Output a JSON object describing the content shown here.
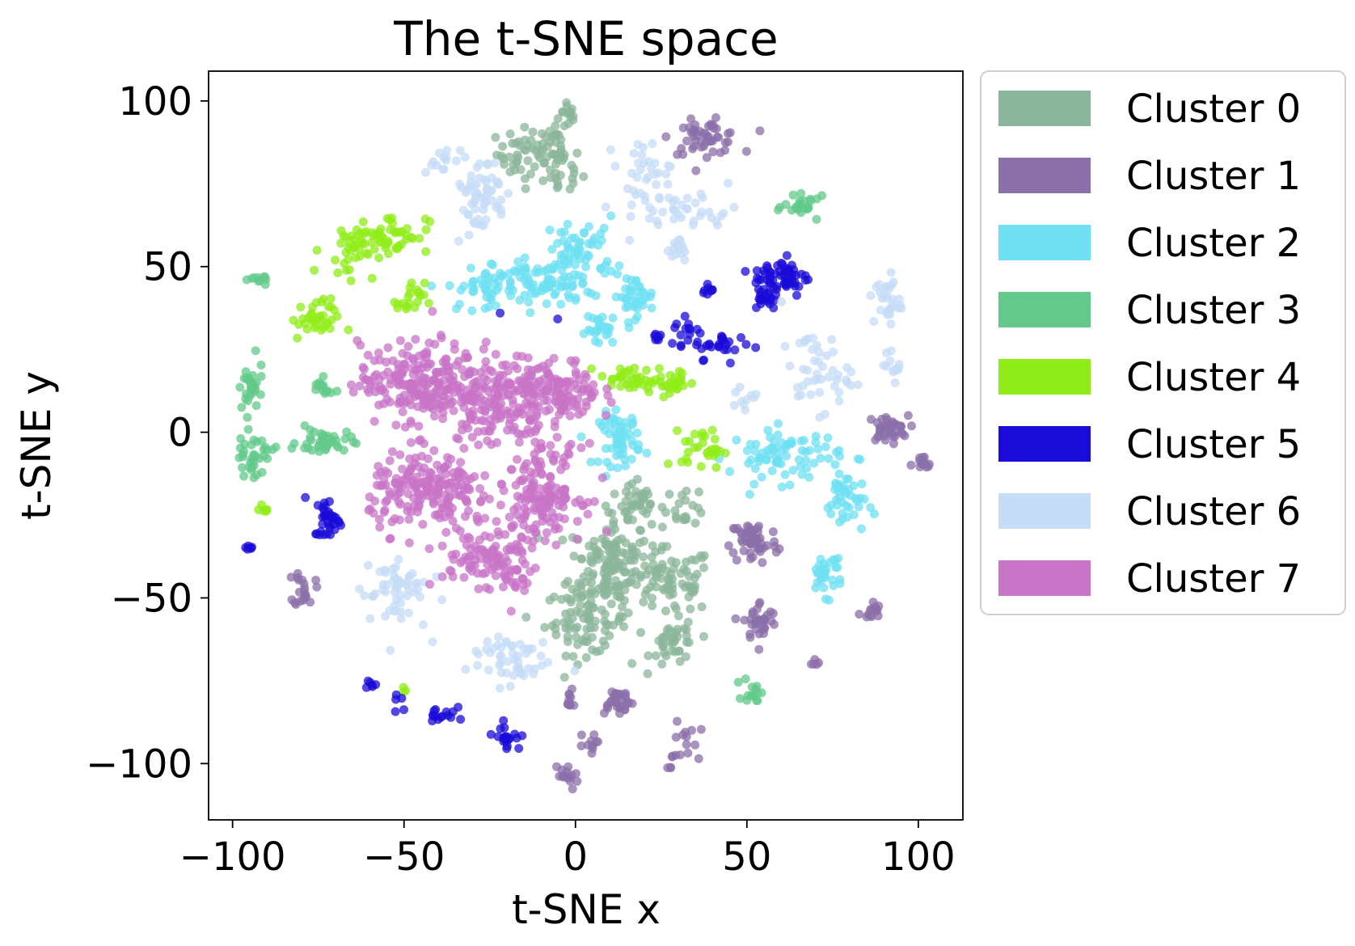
{
  "chart_data": {
    "type": "scatter",
    "title": "The t-SNE space",
    "xlabel": "t-SNE x",
    "ylabel": "t-SNE y",
    "xlim": [
      -107,
      113
    ],
    "ylim": [
      -117,
      109
    ],
    "xticks": [
      -100,
      -50,
      0,
      50,
      100
    ],
    "yticks": [
      -100,
      -50,
      0,
      50,
      100
    ],
    "xtick_labels": [
      "−100",
      "−50",
      "0",
      "50",
      "100"
    ],
    "ytick_labels": [
      "−100",
      "−50",
      "0",
      "50",
      "100"
    ],
    "grid": false,
    "legend_position": "outside-right-top",
    "series": [
      {
        "name": "Cluster 0",
        "color": "#8BB59A",
        "groups": [
          {
            "x": -2,
            "y": 96,
            "sx": 1.5,
            "sy": 2.5,
            "n": 14
          },
          {
            "x": -13,
            "y": 84,
            "sx": 5,
            "sy": 4,
            "n": 55
          },
          {
            "x": -4,
            "y": 80,
            "sx": 3,
            "sy": 5,
            "n": 30
          },
          {
            "x": 10,
            "y": -40,
            "sx": 6,
            "sy": 7,
            "n": 140
          },
          {
            "x": 3,
            "y": -57,
            "sx": 6,
            "sy": 5,
            "n": 80
          },
          {
            "x": 17,
            "y": -22,
            "sx": 4,
            "sy": 4,
            "n": 40
          },
          {
            "x": 28,
            "y": -45,
            "sx": 6,
            "sy": 5,
            "n": 70
          },
          {
            "x": 29,
            "y": -64,
            "sx": 3.5,
            "sy": 3.5,
            "n": 40
          },
          {
            "x": 32,
            "y": -22,
            "sx": 3,
            "sy": 3,
            "n": 20
          }
        ]
      },
      {
        "name": "Cluster 1",
        "color": "#8B6FA9",
        "groups": [
          {
            "x": 38,
            "y": 89,
            "sx": 5,
            "sy": 2.5,
            "n": 50
          },
          {
            "x": 91,
            "y": 1,
            "sx": 3,
            "sy": 2,
            "n": 40
          },
          {
            "x": 101,
            "y": -10,
            "sx": 1.5,
            "sy": 1.5,
            "n": 15
          },
          {
            "x": 52,
            "y": -33,
            "sx": 3.5,
            "sy": 3.5,
            "n": 55
          },
          {
            "x": 54,
            "y": -57,
            "sx": 2.5,
            "sy": 3,
            "n": 35
          },
          {
            "x": 86,
            "y": -54,
            "sx": 1.5,
            "sy": 1.5,
            "n": 15
          },
          {
            "x": -79,
            "y": -47,
            "sx": 1.5,
            "sy": 3,
            "n": 20
          },
          {
            "x": 12,
            "y": -81,
            "sx": 2.5,
            "sy": 2,
            "n": 30
          },
          {
            "x": -2,
            "y": -81,
            "sx": 1.5,
            "sy": 1.5,
            "n": 10
          },
          {
            "x": 3,
            "y": -94,
            "sx": 1.5,
            "sy": 1.5,
            "n": 10
          },
          {
            "x": -3,
            "y": -104,
            "sx": 2,
            "sy": 2,
            "n": 15
          },
          {
            "x": 33,
            "y": -93,
            "sx": 2,
            "sy": 3,
            "n": 12
          },
          {
            "x": 27,
            "y": -99,
            "sx": 1,
            "sy": 1.5,
            "n": 6
          },
          {
            "x": 70,
            "y": -70,
            "sx": 1,
            "sy": 0.8,
            "n": 5
          }
        ]
      },
      {
        "name": "Cluster 2",
        "color": "#6EE0F2",
        "groups": [
          {
            "x": -10,
            "y": 45,
            "sx": 7,
            "sy": 4,
            "n": 85
          },
          {
            "x": 2,
            "y": 55,
            "sx": 5,
            "sy": 5,
            "n": 55
          },
          {
            "x": -27,
            "y": 43,
            "sx": 5,
            "sy": 3,
            "n": 40
          },
          {
            "x": 17,
            "y": 41,
            "sx": 3,
            "sy": 3,
            "n": 40
          },
          {
            "x": 8,
            "y": 31,
            "sx": 2.5,
            "sy": 2.5,
            "n": 25
          },
          {
            "x": 13,
            "y": -2,
            "sx": 3,
            "sy": 4,
            "n": 60
          },
          {
            "x": 61,
            "y": -7,
            "sx": 8,
            "sy": 4,
            "n": 75
          },
          {
            "x": 79,
            "y": -21,
            "sx": 3,
            "sy": 5,
            "n": 40
          },
          {
            "x": 73,
            "y": -42,
            "sx": 2.5,
            "sy": 3.5,
            "n": 30
          }
        ]
      },
      {
        "name": "Cluster 3",
        "color": "#62C98A",
        "groups": [
          {
            "x": 67,
            "y": 68,
            "sx": 3,
            "sy": 1.5,
            "n": 25
          },
          {
            "x": -92,
            "y": 46,
            "sx": 1.5,
            "sy": 1,
            "n": 10
          },
          {
            "x": -95,
            "y": 13,
            "sx": 2,
            "sy": 4,
            "n": 30
          },
          {
            "x": -74,
            "y": 13,
            "sx": 1.5,
            "sy": 1.5,
            "n": 15
          },
          {
            "x": -73,
            "y": -3,
            "sx": 4,
            "sy": 2,
            "n": 40
          },
          {
            "x": -94,
            "y": -7,
            "sx": 3,
            "sy": 3,
            "n": 35
          },
          {
            "x": 52,
            "y": -78,
            "sx": 1.5,
            "sy": 2,
            "n": 15
          }
        ]
      },
      {
        "name": "Cluster 4",
        "color": "#90EC18",
        "groups": [
          {
            "x": -53,
            "y": 60,
            "sx": 5,
            "sy": 3,
            "n": 40
          },
          {
            "x": -66,
            "y": 55,
            "sx": 4,
            "sy": 4,
            "n": 40
          },
          {
            "x": -76,
            "y": 34,
            "sx": 3.5,
            "sy": 3,
            "n": 35
          },
          {
            "x": -48,
            "y": 40,
            "sx": 2,
            "sy": 2.5,
            "n": 20
          },
          {
            "x": 15,
            "y": 16,
            "sx": 4,
            "sy": 2,
            "n": 30
          },
          {
            "x": 28,
            "y": 15,
            "sx": 4,
            "sy": 2,
            "n": 30
          },
          {
            "x": 37,
            "y": -5,
            "sx": 3,
            "sy": 3,
            "n": 30
          },
          {
            "x": -91,
            "y": -23,
            "sx": 1,
            "sy": 1,
            "n": 6
          },
          {
            "x": -50,
            "y": -77,
            "sx": 0.6,
            "sy": 0.6,
            "n": 3
          }
        ]
      },
      {
        "name": "Cluster 5",
        "color": "#1A0BD8",
        "groups": [
          {
            "x": 60,
            "y": 47,
            "sx": 4,
            "sy": 3,
            "n": 60
          },
          {
            "x": 55,
            "y": 41,
            "sx": 2,
            "sy": 2,
            "n": 20
          },
          {
            "x": 33,
            "y": 30,
            "sx": 2,
            "sy": 3,
            "n": 15
          },
          {
            "x": 44,
            "y": 26,
            "sx": 4,
            "sy": 2,
            "n": 25
          },
          {
            "x": 24,
            "y": 29,
            "sx": 1.5,
            "sy": 1,
            "n": 8
          },
          {
            "x": 39,
            "y": 42,
            "sx": 1,
            "sy": 1.5,
            "n": 8
          },
          {
            "x": -72,
            "y": -26,
            "sx": 2,
            "sy": 3,
            "n": 35
          },
          {
            "x": -95,
            "y": -35,
            "sx": 0.8,
            "sy": 0.5,
            "n": 6
          },
          {
            "x": -60,
            "y": -76,
            "sx": 1,
            "sy": 1,
            "n": 6
          },
          {
            "x": -51,
            "y": -80,
            "sx": 1.5,
            "sy": 2,
            "n": 5
          },
          {
            "x": -39,
            "y": -85,
            "sx": 2,
            "sy": 2,
            "n": 15
          },
          {
            "x": -20,
            "y": -92,
            "sx": 2,
            "sy": 2,
            "n": 20
          },
          {
            "x": -5,
            "y": 35,
            "sx": 0.3,
            "sy": 0.3,
            "n": 1
          },
          {
            "x": -22,
            "y": 36,
            "sx": 0.3,
            "sy": 0.3,
            "n": 1
          }
        ]
      },
      {
        "name": "Cluster 6",
        "color": "#C6DCF7",
        "groups": [
          {
            "x": -28,
            "y": 72,
            "sx": 4,
            "sy": 6,
            "n": 60
          },
          {
            "x": -40,
            "y": 82,
            "sx": 2,
            "sy": 2,
            "n": 12
          },
          {
            "x": 20,
            "y": 76,
            "sx": 4,
            "sy": 6,
            "n": 40
          },
          {
            "x": 35,
            "y": 67,
            "sx": 6,
            "sy": 3,
            "n": 30
          },
          {
            "x": 30,
            "y": 55,
            "sx": 1.5,
            "sy": 2,
            "n": 15
          },
          {
            "x": 91,
            "y": 40,
            "sx": 2,
            "sy": 4,
            "n": 30
          },
          {
            "x": 70,
            "y": 18,
            "sx": 5,
            "sy": 6,
            "n": 45
          },
          {
            "x": 93,
            "y": 20,
            "sx": 1.5,
            "sy": 2,
            "n": 12
          },
          {
            "x": 50,
            "y": 10,
            "sx": 2,
            "sy": 2,
            "n": 10
          },
          {
            "x": -53,
            "y": -48,
            "sx": 5,
            "sy": 6,
            "n": 55
          },
          {
            "x": -20,
            "y": -68,
            "sx": 6,
            "sy": 4,
            "n": 50
          }
        ]
      },
      {
        "name": "Cluster 7",
        "color": "#C874C7",
        "groups": [
          {
            "x": -45,
            "y": 15,
            "sx": 9,
            "sy": 6,
            "n": 220
          },
          {
            "x": -23,
            "y": 10,
            "sx": 7,
            "sy": 7,
            "n": 160
          },
          {
            "x": -5,
            "y": 12,
            "sx": 6,
            "sy": 5,
            "n": 120
          },
          {
            "x": -42,
            "y": -18,
            "sx": 9,
            "sy": 6,
            "n": 200
          },
          {
            "x": -10,
            "y": -18,
            "sx": 6,
            "sy": 7,
            "n": 160
          },
          {
            "x": -28,
            "y": -38,
            "sx": 6,
            "sy": 4,
            "n": 70
          },
          {
            "x": -18,
            "y": -42,
            "sx": 3,
            "sy": 5,
            "n": 40
          }
        ]
      }
    ]
  }
}
